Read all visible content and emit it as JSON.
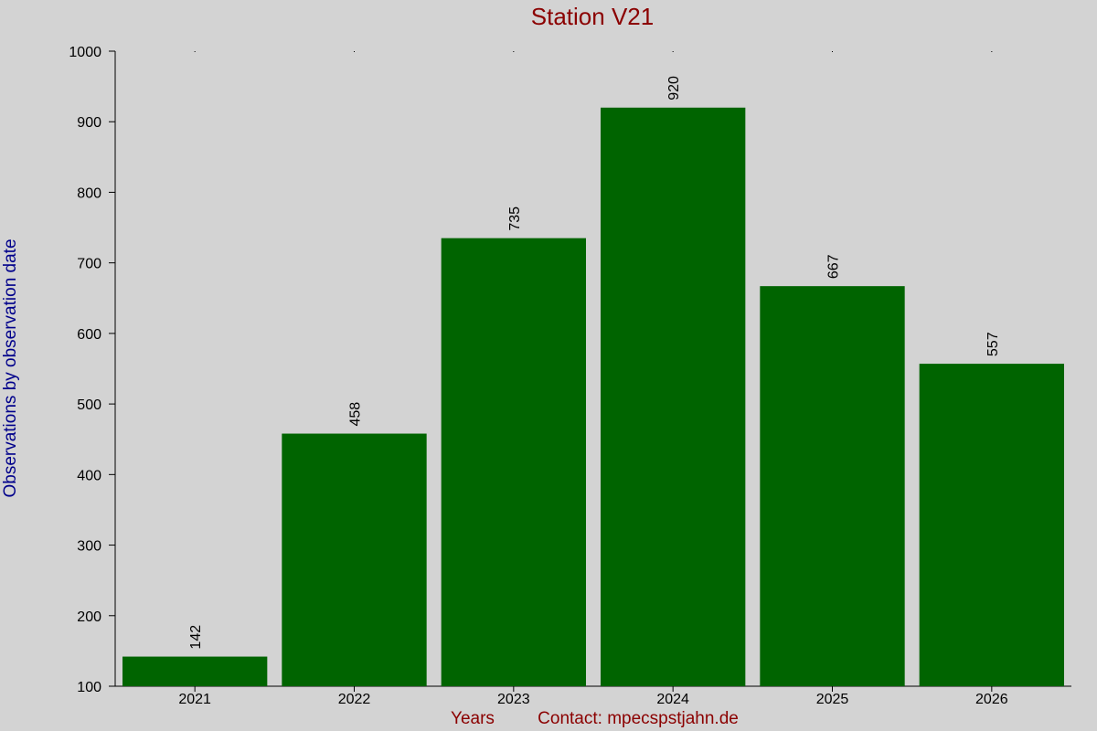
{
  "colors": {
    "background": "#d3d3d3",
    "bar": "#006400",
    "title": "#8b0000",
    "xlabel": "#8b0000",
    "ylabel": "#00008b",
    "axis": "#000000"
  },
  "chart_data": {
    "type": "bar",
    "title": "Station V21",
    "xlabel": "Years",
    "ylabel": "Observations by observation date",
    "footer": "Contact: mpecspstjahn.de",
    "categories": [
      "2021",
      "2022",
      "2023",
      "2024",
      "2025",
      "2026"
    ],
    "values": [
      142,
      458,
      735,
      920,
      667,
      557
    ],
    "ylim": [
      100,
      1000
    ],
    "yticks": [
      100,
      200,
      300,
      400,
      500,
      600,
      700,
      800,
      900,
      1000
    ],
    "data_labels": [
      "142",
      "458",
      "735",
      "920",
      "667",
      "557"
    ],
    "grid": false,
    "legend": "none"
  }
}
